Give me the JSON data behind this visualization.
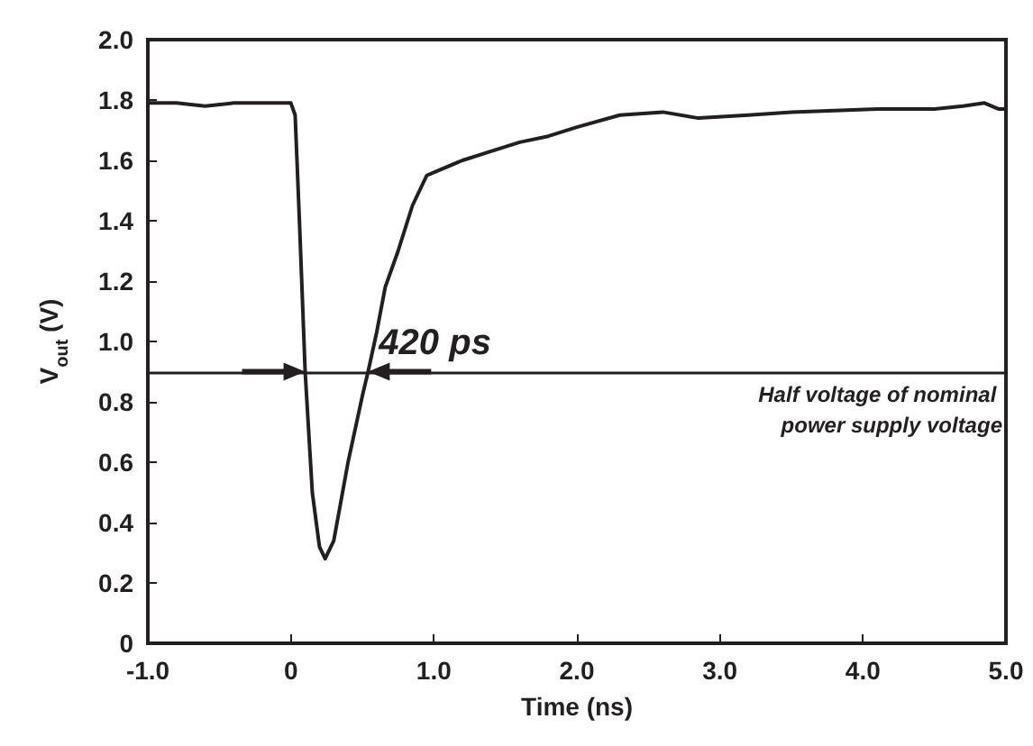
{
  "chart_data": {
    "type": "line",
    "xlabel": "Time (ns)",
    "ylabel": "V$_{out}$ (V)",
    "x": [
      -1.0,
      -0.8,
      -0.6,
      -0.4,
      -0.2,
      0.0,
      0.03,
      0.06,
      0.1,
      0.15,
      0.2,
      0.24,
      0.3,
      0.4,
      0.5,
      0.54,
      0.6,
      0.66,
      0.75,
      0.85,
      0.95,
      1.0,
      1.2,
      1.4,
      1.6,
      1.8,
      2.0,
      2.3,
      2.6,
      2.85,
      3.2,
      3.5,
      4.1,
      4.5,
      4.7,
      4.85,
      4.95,
      5.0
    ],
    "series": [
      {
        "color": "#231f20",
        "values": [
          1.79,
          1.79,
          1.78,
          1.79,
          1.79,
          1.79,
          1.75,
          1.4,
          0.9,
          0.5,
          0.32,
          0.28,
          0.34,
          0.6,
          0.82,
          0.9,
          1.03,
          1.18,
          1.3,
          1.45,
          1.55,
          1.56,
          1.6,
          1.63,
          1.66,
          1.68,
          1.71,
          1.75,
          1.76,
          1.74,
          1.75,
          1.76,
          1.77,
          1.77,
          1.78,
          1.79,
          1.77,
          1.77
        ]
      }
    ],
    "xlim": [
      -1.0,
      5.0
    ],
    "xticks": [
      {
        "value": -1,
        "label": "-1.0"
      },
      0,
      {
        "value": 1,
        "label": "1.0"
      },
      {
        "value": 2,
        "label": "2.0"
      },
      {
        "value": 3,
        "label": "3.0"
      },
      {
        "value": 4,
        "label": "4.0"
      },
      {
        "value": 5,
        "label": "5.0"
      }
    ],
    "ylim": [
      0,
      2.0
    ],
    "yticks": [
      0,
      0.2,
      0.4,
      0.6,
      0.8,
      {
        "value": 1,
        "label": "1.0"
      },
      1.2,
      1.4,
      1.6,
      1.8,
      {
        "value": 2,
        "label": "2.0"
      }
    ],
    "ref_lines": [
      {
        "axis": "y",
        "value": 0.9,
        "label": "Half voltage of nominal power supply voltage",
        "color": "#231f20",
        "line_style": "solid"
      }
    ],
    "annotations": [
      {
        "text": "420 ps",
        "x": 0.54,
        "y": 0.9
      }
    ],
    "grid": false,
    "marker": "none",
    "line_style": "solid"
  }
}
